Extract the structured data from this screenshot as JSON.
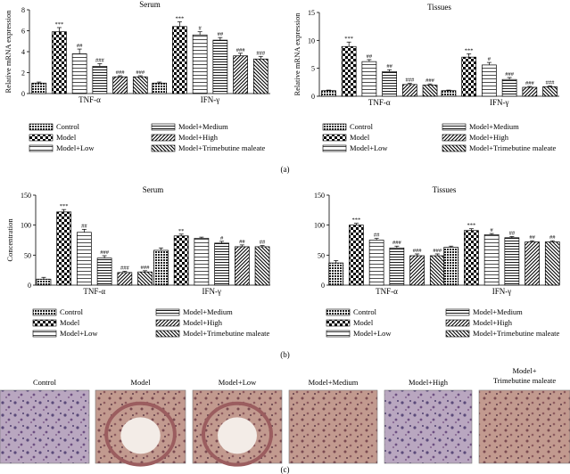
{
  "panel_labels": {
    "a": "(a)",
    "b": "(b)",
    "c": "(c)"
  },
  "groups": [
    "Control",
    "Model",
    "Model+Low",
    "Model+Medium",
    "Model+High",
    "Model+Trimebutine maleate"
  ],
  "legend_order": [
    [
      "Control",
      "Model+Medium"
    ],
    [
      "Model",
      "Model+High"
    ],
    [
      "Model+Low",
      "Model+Trimebutine maleate"
    ]
  ],
  "chart_data": [
    {
      "type": "bar",
      "panel": "a",
      "title": "Serum",
      "ylabel": "Relative mRNA expression",
      "ylim": [
        0,
        8
      ],
      "yticks": [
        0,
        2,
        4,
        6,
        8
      ],
      "categories": [
        "TNF-α",
        "IFN-γ"
      ],
      "series": [
        {
          "name": "Control",
          "values": [
            1.0,
            1.0
          ],
          "errors": [
            0.1,
            0.1
          ],
          "annotations": [
            "",
            ""
          ]
        },
        {
          "name": "Model",
          "values": [
            5.9,
            6.4
          ],
          "errors": [
            0.4,
            0.45
          ],
          "annotations": [
            "***",
            "***"
          ]
        },
        {
          "name": "Model+Low",
          "values": [
            3.8,
            5.6
          ],
          "errors": [
            0.45,
            0.3
          ],
          "annotations": [
            "##",
            "#"
          ]
        },
        {
          "name": "Model+Medium",
          "values": [
            2.6,
            5.1
          ],
          "errors": [
            0.25,
            0.25
          ],
          "annotations": [
            "###",
            "##"
          ]
        },
        {
          "name": "Model+High",
          "values": [
            1.6,
            3.6
          ],
          "errors": [
            0.1,
            0.25
          ],
          "annotations": [
            "###",
            "###"
          ]
        },
        {
          "name": "Model+Trimebutine maleate",
          "values": [
            1.6,
            3.3
          ],
          "errors": [
            0.1,
            0.25
          ],
          "annotations": [
            "###",
            "###"
          ]
        }
      ]
    },
    {
      "type": "bar",
      "panel": "a",
      "title": "Tissues",
      "ylabel": "Relative mRNA expression",
      "ylim": [
        0,
        15
      ],
      "yticks": [
        0,
        5,
        10,
        15
      ],
      "categories": [
        "TNF-α",
        "IFN-γ"
      ],
      "series": [
        {
          "name": "Control",
          "values": [
            1.0,
            1.0
          ],
          "errors": [
            0.1,
            0.1
          ],
          "annotations": [
            "",
            ""
          ]
        },
        {
          "name": "Model",
          "values": [
            8.9,
            7.0
          ],
          "errors": [
            0.8,
            0.6
          ],
          "annotations": [
            "***",
            "***"
          ]
        },
        {
          "name": "Model+Low",
          "values": [
            6.2,
            5.6
          ],
          "errors": [
            0.35,
            0.45
          ],
          "annotations": [
            "##",
            "#"
          ]
        },
        {
          "name": "Model+Medium",
          "values": [
            4.4,
            3.0
          ],
          "errors": [
            0.35,
            0.35
          ],
          "annotations": [
            "##",
            "###"
          ]
        },
        {
          "name": "Model+High",
          "values": [
            2.1,
            1.6
          ],
          "errors": [
            0.2,
            0.15
          ],
          "annotations": [
            "###",
            "###"
          ]
        },
        {
          "name": "Model+Trimebutine maleate",
          "values": [
            2.0,
            1.7
          ],
          "errors": [
            0.2,
            0.15
          ],
          "annotations": [
            "###",
            "###"
          ]
        }
      ]
    },
    {
      "type": "bar",
      "panel": "b",
      "title": "Serum",
      "ylabel": "Concentration",
      "ylim": [
        0,
        150
      ],
      "yticks": [
        0,
        50,
        100,
        150
      ],
      "categories": [
        "TNF-α",
        "IFN-γ"
      ],
      "series": [
        {
          "name": "Control",
          "values": [
            10,
            58
          ],
          "errors": [
            3,
            4
          ],
          "annotations": [
            "",
            ""
          ]
        },
        {
          "name": "Model",
          "values": [
            122,
            82
          ],
          "errors": [
            4,
            3
          ],
          "annotations": [
            "***",
            "**"
          ]
        },
        {
          "name": "Model+Low",
          "values": [
            88,
            78
          ],
          "errors": [
            5,
            2
          ],
          "annotations": [
            "##",
            ""
          ]
        },
        {
          "name": "Model+Medium",
          "values": [
            45,
            70
          ],
          "errors": [
            4,
            3
          ],
          "annotations": [
            "###",
            "#"
          ]
        },
        {
          "name": "Model+High",
          "values": [
            21,
            64
          ],
          "errors": [
            2,
            3
          ],
          "annotations": [
            "###",
            "##"
          ]
        },
        {
          "name": "Model+Trimebutine maleate",
          "values": [
            22,
            64
          ],
          "errors": [
            2,
            2
          ],
          "annotations": [
            "###",
            "##"
          ]
        }
      ]
    },
    {
      "type": "bar",
      "panel": "b",
      "title": "Tissues",
      "ylabel": "",
      "ylim": [
        0,
        150
      ],
      "yticks": [
        0,
        50,
        100,
        150
      ],
      "categories": [
        "TNF-α",
        "IFN-γ"
      ],
      "series": [
        {
          "name": "Control",
          "values": [
            37,
            63
          ],
          "errors": [
            4,
            2
          ],
          "annotations": [
            "",
            ""
          ]
        },
        {
          "name": "Model",
          "values": [
            100,
            91
          ],
          "errors": [
            3,
            3
          ],
          "annotations": [
            "***",
            "***"
          ]
        },
        {
          "name": "Model+Low",
          "values": [
            75,
            84
          ],
          "errors": [
            3,
            2
          ],
          "annotations": [
            "##",
            "#"
          ]
        },
        {
          "name": "Model+Medium",
          "values": [
            62,
            79
          ],
          "errors": [
            3,
            2
          ],
          "annotations": [
            "###",
            "##"
          ]
        },
        {
          "name": "Model+High",
          "values": [
            49,
            72
          ],
          "errors": [
            3,
            2
          ],
          "annotations": [
            "###",
            "##"
          ]
        },
        {
          "name": "Model+Trimebutine maleate",
          "values": [
            49,
            72
          ],
          "errors": [
            3,
            2
          ],
          "annotations": [
            "###",
            "##"
          ]
        }
      ]
    }
  ],
  "histology": {
    "labels": [
      "Control",
      "Model",
      "Model+Low",
      "Model+Medium",
      "Model+High",
      "Model+\nTrimebutine maleate"
    ]
  }
}
